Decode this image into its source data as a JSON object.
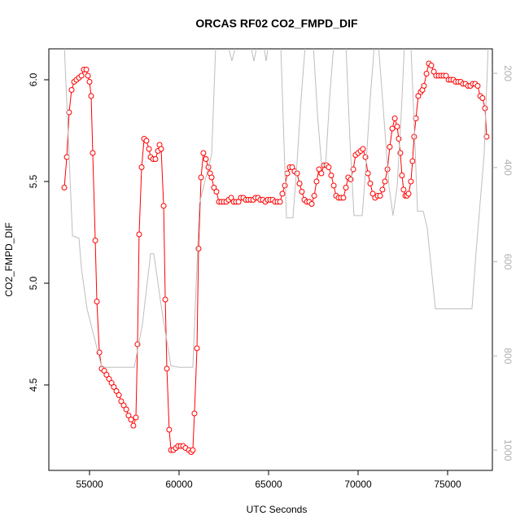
{
  "chart_data": {
    "type": "line",
    "title": "ORCAS RF02 CO2_FMPD_DIF",
    "xlabel": "UTC Seconds",
    "ylabel": "CO2_FMPD_DIF",
    "xlim": [
      52727,
      77500
    ],
    "xticks": [
      55000,
      60000,
      65000,
      70000,
      75000
    ],
    "ylim": [
      4.08,
      6.152
    ],
    "yticks": [
      4.5,
      {
        "value": 5,
        "label": "5.0"
      },
      5.5,
      {
        "value": 6,
        "label": "6.0"
      }
    ],
    "y2lim": [
      1043,
      148
    ],
    "y2ticks": [
      200,
      400,
      600,
      800,
      1000
    ],
    "series": [
      {
        "color": "#ff0000",
        "markers": true,
        "x": [
          53590,
          53730,
          53860,
          54000,
          54140,
          54270,
          54410,
          54550,
          54680,
          54820,
          54910,
          55000,
          55090,
          55180,
          55320,
          55410,
          55550,
          55680,
          55820,
          55950,
          56090,
          56230,
          56360,
          56500,
          56640,
          56770,
          56910,
          57050,
          57180,
          57320,
          57450,
          57590,
          57680,
          57770,
          57910,
          58050,
          58180,
          58320,
          58410,
          58550,
          58680,
          58820,
          58910,
          59000,
          59140,
          59230,
          59320,
          59450,
          59550,
          59680,
          59820,
          59950,
          60090,
          60230,
          60360,
          60550,
          60680,
          60770,
          60860,
          61000,
          61090,
          61230,
          61360,
          61500,
          61640,
          61730,
          61820,
          61950,
          62090,
          62230,
          62360,
          62500,
          62640,
          62770,
          62910,
          63050,
          63180,
          63320,
          63450,
          63590,
          63730,
          63860,
          64000,
          64140,
          64270,
          64410,
          64540,
          64680,
          64820,
          64950,
          65090,
          65230,
          65360,
          65500,
          65640,
          65770,
          65910,
          66050,
          66180,
          66320,
          66450,
          66590,
          66730,
          66860,
          67000,
          67140,
          67270,
          67410,
          67550,
          67680,
          67820,
          67950,
          68090,
          68230,
          68360,
          68500,
          68640,
          68770,
          68910,
          69040,
          69180,
          69320,
          69450,
          69590,
          69730,
          69860,
          70000,
          70140,
          70270,
          70410,
          70550,
          70680,
          70820,
          70950,
          71090,
          71230,
          71360,
          71500,
          71640,
          71770,
          71910,
          72050,
          72180,
          72270,
          72360,
          72450,
          72540,
          72640,
          72730,
          72820,
          72950,
          73040,
          73130,
          73230,
          73360,
          73500,
          73590,
          73680,
          73820,
          73950,
          74090,
          74230,
          74360,
          74500,
          74640,
          74770,
          74910,
          75050,
          75180,
          75320,
          75450,
          75590,
          75730,
          75860,
          76000,
          76140,
          76270,
          76410,
          76540,
          76680,
          76820,
          76950,
          77090,
          77180
        ],
        "values": [
          5.47,
          5.62,
          5.84,
          5.95,
          5.99,
          6.0,
          6.01,
          6.02,
          6.05,
          6.05,
          6.02,
          5.99,
          5.92,
          5.64,
          5.21,
          4.91,
          4.66,
          4.58,
          4.57,
          4.55,
          4.53,
          4.51,
          4.49,
          4.47,
          4.45,
          4.42,
          4.4,
          4.38,
          4.35,
          4.33,
          4.3,
          4.34,
          4.7,
          5.24,
          5.57,
          5.71,
          5.7,
          5.66,
          5.62,
          5.61,
          5.61,
          5.65,
          5.68,
          5.66,
          5.38,
          4.92,
          4.58,
          4.28,
          4.18,
          4.18,
          4.19,
          4.2,
          4.2,
          4.2,
          4.19,
          4.18,
          4.17,
          4.18,
          4.36,
          4.68,
          5.17,
          5.52,
          5.64,
          5.61,
          5.57,
          5.54,
          5.52,
          5.47,
          5.45,
          5.4,
          5.4,
          5.4,
          5.4,
          5.41,
          5.42,
          5.4,
          5.4,
          5.4,
          5.42,
          5.42,
          5.41,
          5.41,
          5.41,
          5.41,
          5.42,
          5.42,
          5.41,
          5.41,
          5.4,
          5.41,
          5.41,
          5.41,
          5.4,
          5.4,
          5.4,
          5.44,
          5.48,
          5.54,
          5.57,
          5.57,
          5.55,
          5.54,
          5.49,
          5.45,
          5.41,
          5.4,
          5.4,
          5.39,
          5.43,
          5.5,
          5.56,
          5.54,
          5.58,
          5.58,
          5.57,
          5.53,
          5.48,
          5.43,
          5.42,
          5.42,
          5.42,
          5.47,
          5.52,
          5.51,
          5.56,
          5.63,
          5.64,
          5.65,
          5.66,
          5.62,
          5.54,
          5.49,
          5.44,
          5.42,
          5.43,
          5.43,
          5.46,
          5.5,
          5.56,
          5.67,
          5.76,
          5.81,
          5.77,
          5.71,
          5.64,
          5.53,
          5.46,
          5.43,
          5.43,
          5.44,
          5.5,
          5.6,
          5.72,
          5.81,
          5.92,
          5.94,
          5.95,
          5.97,
          6.03,
          6.08,
          6.07,
          6.04,
          6.02,
          6.02,
          6.02,
          6.02,
          6.02,
          6.0,
          6.0,
          6.0,
          5.99,
          5.99,
          5.99,
          5.98,
          5.98,
          5.97,
          5.97,
          5.98,
          5.98,
          5.97,
          5.92,
          5.91,
          5.86,
          5.72
        ]
      },
      {
        "color": "#bebebe",
        "axis": "y2",
        "x": [
          53590,
          54050,
          54410,
          54550,
          54860,
          55320,
          55680,
          57500,
          57950,
          58410,
          58590,
          58770,
          59090,
          59550,
          60000,
          60770,
          61140,
          61590,
          61820,
          62050,
          62730,
          62950,
          63180,
          64000,
          64180,
          64360,
          64730,
          64860,
          65000,
          65680,
          66000,
          66360,
          66590,
          66820,
          67050,
          67500,
          67730,
          67950,
          68180,
          68410,
          68640,
          69320,
          69540,
          69770,
          70230,
          70450,
          70680,
          70910,
          71140,
          71360,
          71730,
          71950,
          72180,
          72410,
          72590,
          72950,
          73180,
          73320,
          73640,
          73860,
          74320,
          76360,
          76590,
          77040,
          77270
        ],
        "values": [
          140,
          545,
          550,
          614,
          700,
          769,
          824,
          824,
          734,
          583,
          583,
          631,
          717,
          821,
          824,
          824,
          476,
          407,
          372,
          140,
          140,
          174,
          140,
          140,
          174,
          140,
          140,
          174,
          140,
          140,
          507,
          507,
          390,
          252,
          140,
          140,
          286,
          390,
          398,
          252,
          140,
          140,
          338,
          502,
          502,
          390,
          252,
          140,
          140,
          252,
          441,
          502,
          441,
          286,
          140,
          140,
          355,
          493,
          493,
          528,
          700,
          700,
          579,
          372,
          140
        ]
      }
    ]
  }
}
